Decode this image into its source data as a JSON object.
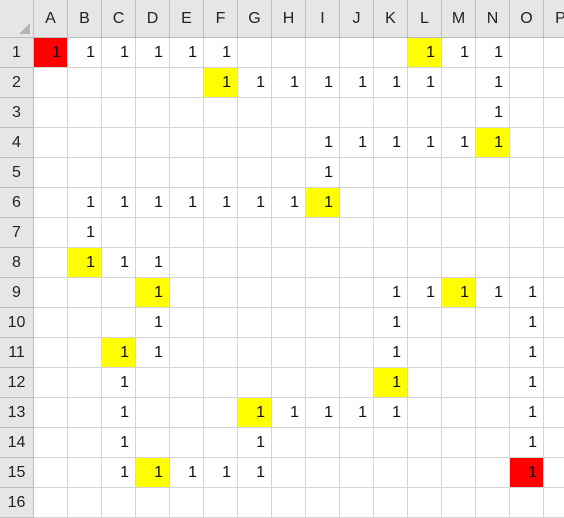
{
  "spreadsheet": {
    "columns": [
      "A",
      "B",
      "C",
      "D",
      "E",
      "F",
      "G",
      "H",
      "I",
      "J",
      "K",
      "L",
      "M",
      "N",
      "O",
      "P"
    ],
    "rows": [
      "1",
      "2",
      "3",
      "4",
      "5",
      "6",
      "7",
      "8",
      "9",
      "10",
      "11",
      "12",
      "13",
      "14",
      "15",
      "16"
    ],
    "colors": {
      "yellow": "#ffff00",
      "red": "#ff0000"
    },
    "cells": {
      "A1": {
        "v": "1",
        "fill": "red"
      },
      "B1": {
        "v": "1"
      },
      "C1": {
        "v": "1"
      },
      "D1": {
        "v": "1"
      },
      "E1": {
        "v": "1"
      },
      "F1": {
        "v": "1"
      },
      "L1": {
        "v": "1",
        "fill": "yellow"
      },
      "M1": {
        "v": "1"
      },
      "N1": {
        "v": "1"
      },
      "F2": {
        "v": "1",
        "fill": "yellow"
      },
      "G2": {
        "v": "1"
      },
      "H2": {
        "v": "1"
      },
      "I2": {
        "v": "1"
      },
      "J2": {
        "v": "1"
      },
      "K2": {
        "v": "1"
      },
      "L2": {
        "v": "1"
      },
      "N2": {
        "v": "1"
      },
      "N3": {
        "v": "1"
      },
      "I4": {
        "v": "1"
      },
      "J4": {
        "v": "1"
      },
      "K4": {
        "v": "1"
      },
      "L4": {
        "v": "1"
      },
      "M4": {
        "v": "1"
      },
      "N4": {
        "v": "1",
        "fill": "yellow"
      },
      "I5": {
        "v": "1"
      },
      "B6": {
        "v": "1"
      },
      "C6": {
        "v": "1"
      },
      "D6": {
        "v": "1"
      },
      "E6": {
        "v": "1"
      },
      "F6": {
        "v": "1"
      },
      "G6": {
        "v": "1"
      },
      "H6": {
        "v": "1"
      },
      "I6": {
        "v": "1",
        "fill": "yellow"
      },
      "B7": {
        "v": "1"
      },
      "B8": {
        "v": "1",
        "fill": "yellow"
      },
      "C8": {
        "v": "1"
      },
      "D8": {
        "v": "1"
      },
      "D9": {
        "v": "1",
        "fill": "yellow"
      },
      "K9": {
        "v": "1"
      },
      "L9": {
        "v": "1"
      },
      "M9": {
        "v": "1",
        "fill": "yellow"
      },
      "N9": {
        "v": "1"
      },
      "O9": {
        "v": "1"
      },
      "D10": {
        "v": "1"
      },
      "K10": {
        "v": "1"
      },
      "O10": {
        "v": "1"
      },
      "C11": {
        "v": "1",
        "fill": "yellow"
      },
      "D11": {
        "v": "1"
      },
      "K11": {
        "v": "1"
      },
      "O11": {
        "v": "1"
      },
      "C12": {
        "v": "1"
      },
      "K12": {
        "v": "1",
        "fill": "yellow"
      },
      "O12": {
        "v": "1"
      },
      "C13": {
        "v": "1"
      },
      "G13": {
        "v": "1",
        "fill": "yellow"
      },
      "H13": {
        "v": "1"
      },
      "I13": {
        "v": "1"
      },
      "J13": {
        "v": "1"
      },
      "K13": {
        "v": "1"
      },
      "O13": {
        "v": "1"
      },
      "C14": {
        "v": "1"
      },
      "G14": {
        "v": "1"
      },
      "O14": {
        "v": "1"
      },
      "C15": {
        "v": "1"
      },
      "D15": {
        "v": "1",
        "fill": "yellow"
      },
      "E15": {
        "v": "1"
      },
      "F15": {
        "v": "1"
      },
      "G15": {
        "v": "1"
      },
      "O15": {
        "v": "1",
        "fill": "red"
      }
    }
  }
}
